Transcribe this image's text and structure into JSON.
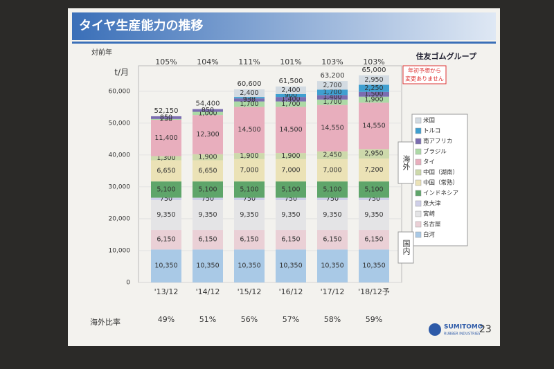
{
  "header": {
    "title": "タイヤ生産能力の推移",
    "group": "住友ゴムグループ",
    "note": [
      "年初予想から",
      "変更ありません"
    ],
    "page_number": "23",
    "logo": [
      "SUMITOMO",
      "RUBBER INDUSTRIES"
    ]
  },
  "chart_data": {
    "type": "stacked_bar",
    "y_unit": "t/月",
    "categories": [
      "'13/12",
      "'14/12",
      "'15/12",
      "'16/12",
      "'17/12",
      "'18/12予"
    ],
    "ylim": [
      0,
      68000
    ],
    "yticks": [
      0,
      {
        "value": 10000,
        "label": "10,000"
      },
      {
        "value": 20000,
        "label": "20,000"
      },
      {
        "value": 30000,
        "label": "30,000"
      },
      {
        "value": 40000,
        "label": "40,000"
      },
      {
        "value": 50000,
        "label": "50,000"
      },
      {
        "value": 60000,
        "label": "60,000"
      }
    ],
    "series": [
      {
        "name": "白河",
        "color": "#a9c9e6",
        "values": [
          10350,
          10350,
          10350,
          10350,
          10350,
          10350
        ],
        "value_labels": [
          "10,350",
          "10,350",
          "10,350",
          "10,350",
          "10,350",
          "10,350"
        ]
      },
      {
        "name": "名古屋",
        "color": "#ead0d6",
        "values": [
          6150,
          6150,
          6150,
          6150,
          6150,
          6150
        ],
        "value_labels": [
          "6,150",
          "6,150",
          "6,150",
          "6,150",
          "6,150",
          "6,150"
        ]
      },
      {
        "name": "宮崎",
        "color": "#e4e4e6",
        "values": [
          9350,
          9350,
          9350,
          9350,
          9350,
          9350
        ],
        "value_labels": [
          "9,350",
          "9,350",
          "9,350",
          "9,350",
          "9,350",
          "9,350"
        ]
      },
      {
        "name": "泉大津",
        "color": "#cfcfe8",
        "values": [
          750,
          750,
          750,
          750,
          750,
          750
        ],
        "value_labels": [
          "750",
          "750",
          "750",
          "750",
          "750",
          "750"
        ]
      },
      {
        "name": "インドネシア",
        "color": "#5fa56a",
        "values": [
          5100,
          5100,
          5100,
          5100,
          5100,
          5100
        ],
        "value_labels": [
          "5,100",
          "5,100",
          "5,100",
          "5,100",
          "5,100",
          "5,100"
        ]
      },
      {
        "name": "中国（常熟）",
        "color": "#ebe2b6",
        "values": [
          6650,
          6650,
          7000,
          7000,
          7000,
          7200
        ],
        "value_labels": [
          "6,650",
          "6,650",
          "7,000",
          "7,000",
          "7,000",
          "7,200"
        ]
      },
      {
        "name": "中国（湖南）",
        "color": "#cdd9ab",
        "values": [
          1300,
          1900,
          1900,
          1900,
          2450,
          2950
        ],
        "value_labels": [
          "1,300",
          "1,900",
          "1,900",
          "1,900",
          "2,450",
          "2,950"
        ]
      },
      {
        "name": "タイ",
        "color": "#e8aebd",
        "values": [
          11400,
          12300,
          14500,
          14500,
          14550,
          14550
        ],
        "value_labels": [
          "11,400",
          "12,300",
          "14,500",
          "14,500",
          "14,550",
          "14,550"
        ]
      },
      {
        "name": "ブラジル",
        "color": "#acd9a6",
        "values": [
          250,
          1000,
          1700,
          1700,
          1700,
          1900
        ],
        "value_labels": [
          "250",
          "1,000",
          "1,700",
          "1,700",
          "1,700",
          "1,900"
        ]
      },
      {
        "name": "南アフリカ",
        "color": "#7b6db0",
        "values": [
          850,
          850,
          950,
          1400,
          1400,
          1500
        ],
        "value_labels": [
          "850",
          "850",
          "950",
          "1,400",
          "1,400",
          "1,500"
        ]
      },
      {
        "name": "トルコ",
        "color": "#3f9fd0",
        "values": [
          null,
          null,
          450,
          900,
          1700,
          2250
        ],
        "value_labels": [
          null,
          null,
          "450",
          "900",
          "1,700",
          "2,250"
        ]
      },
      {
        "name": "米国",
        "color": "#d3dbe2",
        "values": [
          null,
          null,
          2400,
          2400,
          2700,
          2950
        ],
        "value_labels": [
          null,
          null,
          "2,400",
          "2,400",
          "2,700",
          "2,950"
        ]
      }
    ],
    "totals": {
      "values": [
        52150,
        54400,
        60600,
        61500,
        63200,
        65000
      ],
      "value_labels": [
        "52,150",
        "54,400",
        "60,600",
        "61,500",
        "63,200",
        "65,000"
      ]
    },
    "yoy": {
      "label": "対前年",
      "values": [
        105,
        104,
        111,
        101,
        103,
        103
      ],
      "value_labels": [
        "105%",
        "104%",
        "111%",
        "101%",
        "103%",
        "103%"
      ]
    },
    "overseas_ratio": {
      "label": "海外比率",
      "values": [
        49,
        51,
        56,
        57,
        58,
        59
      ],
      "value_labels": [
        "49%",
        "51%",
        "56%",
        "57%",
        "58%",
        "59%"
      ]
    },
    "group_labels": {
      "overseas": "海外",
      "domestic": "国内"
    }
  }
}
